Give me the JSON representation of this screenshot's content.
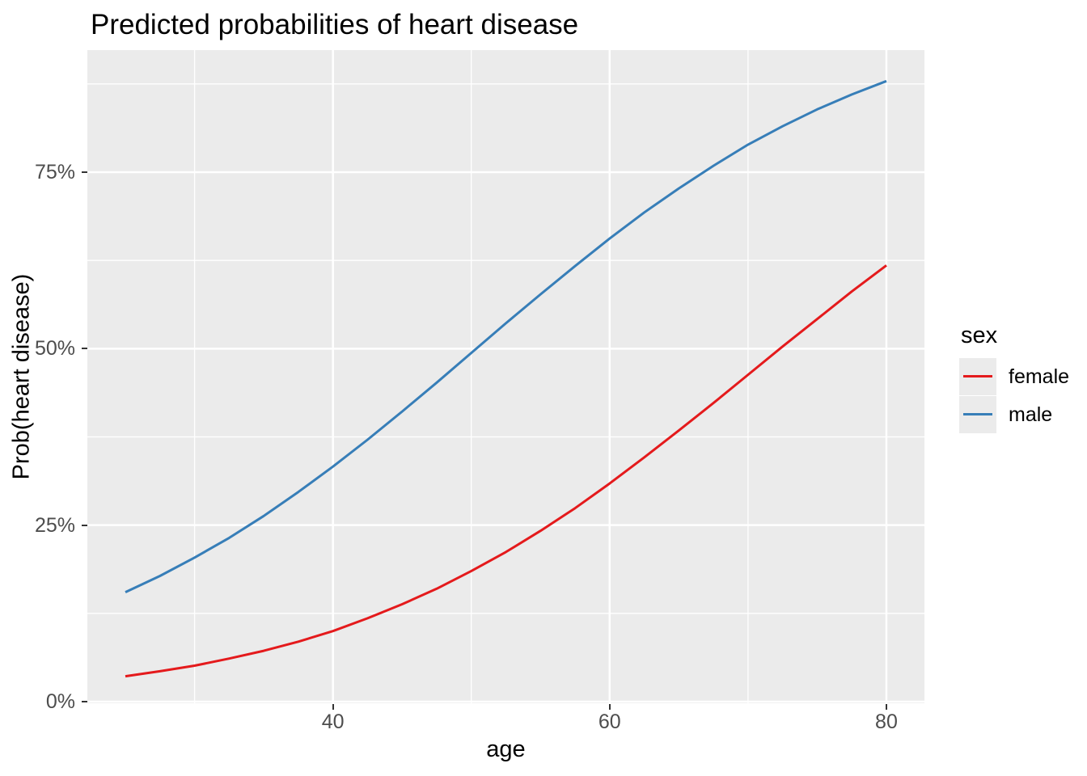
{
  "title": "Predicted probabilities of heart disease",
  "x_axis": {
    "title": "age",
    "tick_labels": [
      "40",
      "60",
      "80"
    ]
  },
  "y_axis": {
    "title": "Prob(heart disease)",
    "tick_labels": [
      "0%",
      "25%",
      "50%",
      "75%"
    ]
  },
  "legend": {
    "title": "sex",
    "entries": [
      {
        "label": "female",
        "color": "#E41A1C"
      },
      {
        "label": "male",
        "color": "#377EB8"
      }
    ]
  },
  "colors": {
    "panel_background": "#EBEBEB",
    "gridline": "#FFFFFF",
    "tick_label": "#4D4D4D",
    "tick_mark": "#333333",
    "title_text": "#000000",
    "female_line": "#E41A1C",
    "male_line": "#377EB8",
    "legend_key_background": "#EBEBEB",
    "page_background": "#FFFFFF"
  },
  "chart_data": {
    "type": "line",
    "title": "Predicted probabilities of heart disease",
    "xlabel": "age",
    "ylabel": "Prob(heart disease)",
    "legend_title": "sex",
    "legend_position": "right",
    "grid": "white major and minor gridlines on gray panel",
    "xlim": [
      25,
      80
    ],
    "ylim": [
      0,
      0.92
    ],
    "x_ticks": [
      {
        "value": 40,
        "label": "40"
      },
      {
        "value": 60,
        "label": "60"
      },
      {
        "value": 80,
        "label": "80"
      }
    ],
    "x_minor_ticks": [
      30,
      50,
      70
    ],
    "y_ticks": [
      {
        "value": 0.0,
        "label": "0%"
      },
      {
        "value": 0.25,
        "label": "25%"
      },
      {
        "value": 0.5,
        "label": "50%"
      },
      {
        "value": 0.75,
        "label": "75%"
      }
    ],
    "y_minor_ticks": [
      0.125,
      0.375,
      0.625,
      0.875
    ],
    "x": [
      25,
      27.5,
      30,
      32.5,
      35,
      37.5,
      40,
      42.5,
      45,
      47.5,
      50,
      52.5,
      55,
      57.5,
      60,
      62.5,
      65,
      67.5,
      70,
      72.5,
      75,
      77.5,
      80
    ],
    "series": [
      {
        "name": "female",
        "color": "#E41A1C",
        "values": [
          0.036,
          0.043,
          0.051,
          0.061,
          0.072,
          0.085,
          0.1,
          0.118,
          0.138,
          0.16,
          0.185,
          0.212,
          0.242,
          0.274,
          0.309,
          0.346,
          0.384,
          0.423,
          0.463,
          0.503,
          0.542,
          0.581,
          0.618
        ]
      },
      {
        "name": "male",
        "color": "#377EB8",
        "values": [
          0.155,
          0.178,
          0.204,
          0.232,
          0.263,
          0.297,
          0.333,
          0.371,
          0.411,
          0.452,
          0.494,
          0.536,
          0.577,
          0.617,
          0.656,
          0.693,
          0.727,
          0.759,
          0.789,
          0.815,
          0.839,
          0.86,
          0.879
        ]
      }
    ]
  }
}
